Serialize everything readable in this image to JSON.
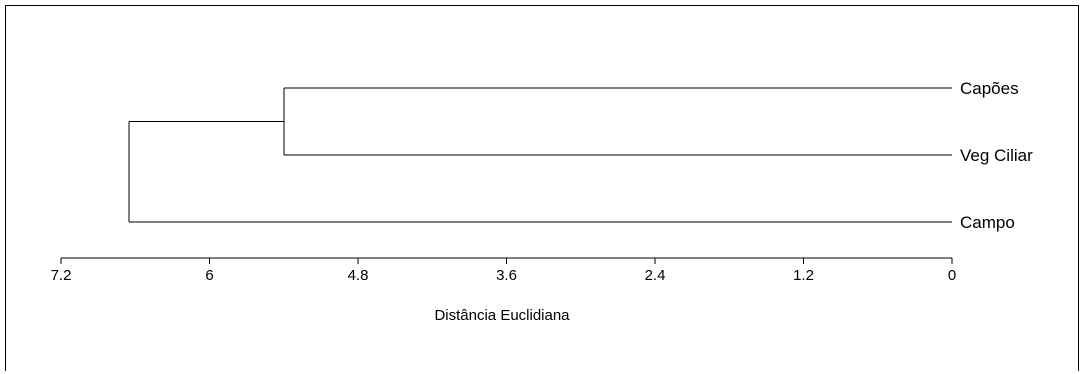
{
  "chart_data": {
    "type": "dendrogram",
    "orientation": "horizontal",
    "xlabel": "Distância Euclidiana",
    "x_reversed": true,
    "xlim": [
      7.2,
      0
    ],
    "ticks": [
      7.2,
      6,
      4.8,
      3.6,
      2.4,
      1.2,
      0
    ],
    "tick_labels": [
      "7.2",
      "6",
      "4.8",
      "3.6",
      "2.4",
      "1.2",
      "0"
    ],
    "leaves": [
      "Capões",
      "Veg Ciliar",
      "Campo"
    ],
    "merges": [
      {
        "left": "Capões",
        "right": "Veg Ciliar",
        "height": 5.4
      },
      {
        "left": "Capões + Veg Ciliar",
        "right": "Campo",
        "height": 6.65
      }
    ]
  }
}
